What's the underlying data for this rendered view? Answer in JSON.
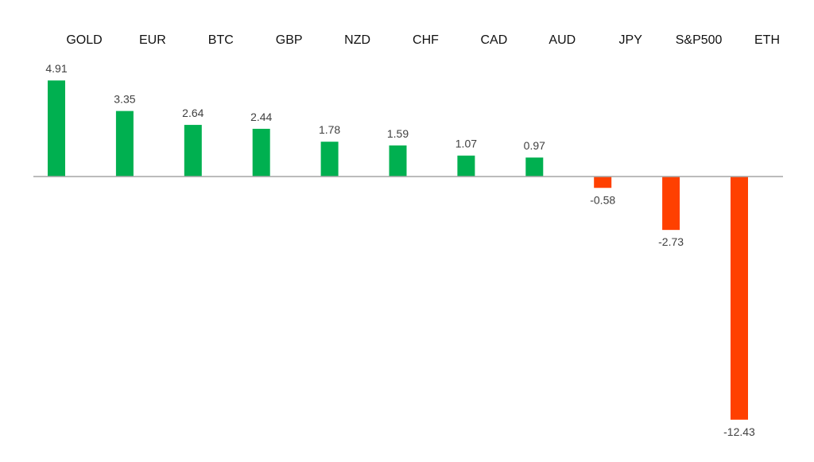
{
  "chart_data": {
    "type": "bar",
    "title": "",
    "xlabel": "",
    "ylabel": "",
    "categories": [
      "GOLD",
      "EUR",
      "BTC",
      "GBP",
      "NZD",
      "CHF",
      "CAD",
      "AUD",
      "JPY",
      "S&P500",
      "ETH"
    ],
    "values": [
      4.91,
      3.35,
      2.64,
      2.44,
      1.78,
      1.59,
      1.07,
      0.97,
      -0.58,
      -2.73,
      -12.43
    ],
    "value_labels": [
      "4.91",
      "3.35",
      "2.64",
      "2.44",
      "1.78",
      "1.59",
      "1.07",
      "0.97",
      "-0.58",
      "-2.73",
      "-12.43"
    ],
    "ylim": [
      -12.43,
      4.91
    ],
    "category_label_position": "top",
    "grid": false,
    "legend": "none",
    "colors": {
      "positive": "#00B050",
      "negative": "#FF4000",
      "axis": "#A6A6A6",
      "label_text": "#404040",
      "category_text": "#111111"
    }
  }
}
